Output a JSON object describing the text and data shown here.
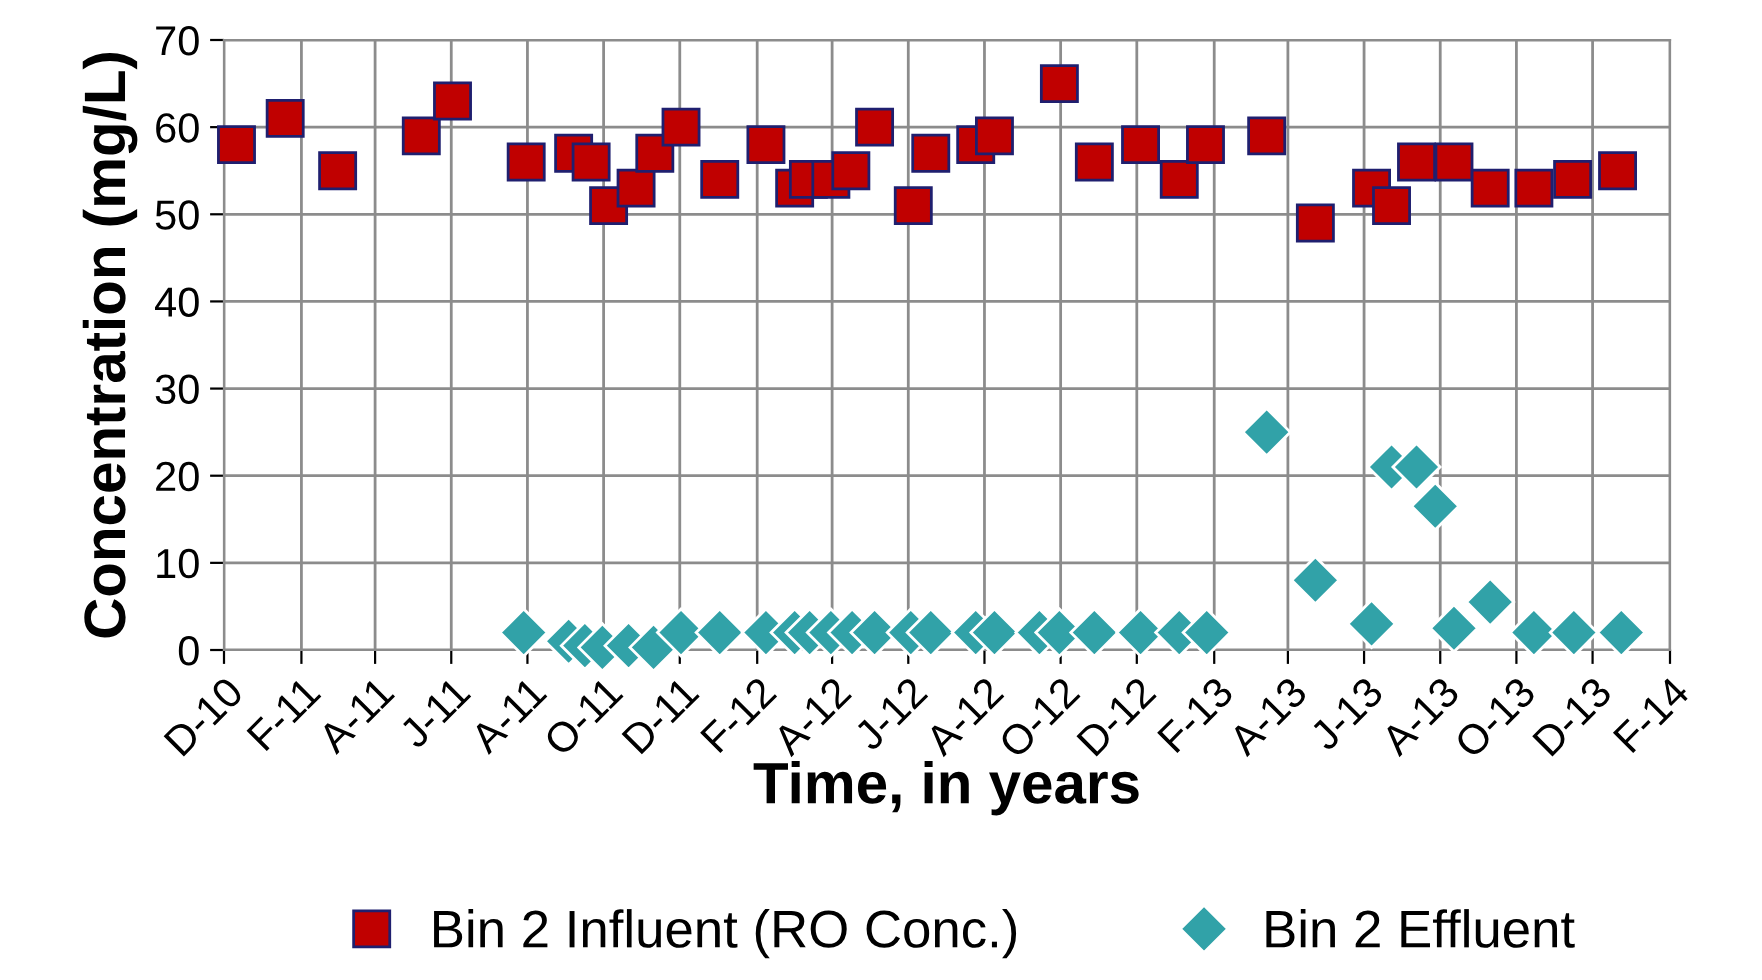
{
  "chart_data": {
    "type": "scatter",
    "xlabel": "Time, in years",
    "ylabel": "Concentration (mg/L)",
    "xlim": [
      "2010-12-01",
      "2014-02-01"
    ],
    "xticks": [
      {
        "value": "2010-12-01",
        "label": "D-10"
      },
      {
        "value": "2011-02-01",
        "label": "F-11"
      },
      {
        "value": "2011-04-01",
        "label": "A-11"
      },
      {
        "value": "2011-06-01",
        "label": "J-11"
      },
      {
        "value": "2011-08-01",
        "label": "A-11"
      },
      {
        "value": "2011-10-01",
        "label": "O-11"
      },
      {
        "value": "2011-12-01",
        "label": "D-11"
      },
      {
        "value": "2012-02-01",
        "label": "F-12"
      },
      {
        "value": "2012-04-01",
        "label": "A-12"
      },
      {
        "value": "2012-06-01",
        "label": "J-12"
      },
      {
        "value": "2012-08-01",
        "label": "A-12"
      },
      {
        "value": "2012-10-01",
        "label": "O-12"
      },
      {
        "value": "2012-12-01",
        "label": "D-12"
      },
      {
        "value": "2013-02-01",
        "label": "F-13"
      },
      {
        "value": "2013-04-01",
        "label": "A-13"
      },
      {
        "value": "2013-06-01",
        "label": "J-13"
      },
      {
        "value": "2013-08-01",
        "label": "A-13"
      },
      {
        "value": "2013-10-01",
        "label": "O-13"
      },
      {
        "value": "2013-12-01",
        "label": "D-13"
      },
      {
        "value": "2014-02-01",
        "label": "F-14"
      }
    ],
    "ylim": [
      0,
      70
    ],
    "yticks": [
      0,
      10,
      20,
      30,
      40,
      50,
      60,
      70
    ],
    "grid": true,
    "legend": "bottom",
    "series": [
      {
        "name": "Bin 2 Influent (RO Conc.)",
        "color": "#c00000",
        "marker": "square",
        "x": [
          "2010-12-11",
          "2011-01-19",
          "2011-03-02",
          "2011-05-08",
          "2011-06-02",
          "2011-07-31",
          "2011-09-07",
          "2011-09-21",
          "2011-10-05",
          "2011-10-27",
          "2011-11-11",
          "2011-12-02",
          "2012-01-02",
          "2012-02-08",
          "2012-03-02",
          "2012-03-13",
          "2012-03-31",
          "2012-04-16",
          "2012-05-05",
          "2012-06-05",
          "2012-06-19",
          "2012-07-25",
          "2012-08-09",
          "2012-09-30",
          "2012-10-28",
          "2012-12-04",
          "2013-01-04",
          "2013-01-25",
          "2013-03-15",
          "2013-04-23",
          "2013-06-07",
          "2013-06-23",
          "2013-07-13",
          "2013-08-12",
          "2013-09-10",
          "2013-10-15",
          "2013-11-15",
          "2013-12-21"
        ],
        "values": [
          58,
          61,
          55,
          59,
          63,
          56,
          57,
          56,
          51,
          53,
          57,
          60,
          54,
          58,
          53,
          54,
          54,
          55,
          60,
          51,
          57,
          58,
          59,
          65,
          56,
          58,
          54,
          58,
          59,
          49,
          53,
          51,
          56,
          56,
          53,
          53,
          54,
          55
        ]
      },
      {
        "name": "Bin 2 Effluent",
        "color": "#31a2a8",
        "marker": "diamond",
        "x": [
          "2011-07-29",
          "2011-09-03",
          "2011-09-16",
          "2011-09-30",
          "2011-10-21",
          "2011-11-10",
          "2011-12-02",
          "2012-01-02",
          "2012-02-08",
          "2012-03-02",
          "2012-03-14",
          "2012-03-31",
          "2012-04-17",
          "2012-05-05",
          "2012-06-03",
          "2012-06-19",
          "2012-07-25",
          "2012-08-09",
          "2012-09-14",
          "2012-09-30",
          "2012-10-28",
          "2012-12-04",
          "2013-01-04",
          "2013-01-26",
          "2013-03-15",
          "2013-04-23",
          "2013-06-07",
          "2013-06-23",
          "2013-07-13",
          "2013-07-28",
          "2013-08-12",
          "2013-09-10",
          "2013-10-15",
          "2013-11-16",
          "2013-12-24"
        ],
        "values": [
          2,
          1,
          0.5,
          0.3,
          0.5,
          0.3,
          2,
          2,
          2,
          2,
          2,
          2,
          2,
          2,
          2,
          2,
          2,
          2,
          2,
          2,
          2,
          2,
          2,
          2,
          25,
          8,
          3,
          21,
          21,
          16.5,
          2.5,
          5.5,
          2,
          2,
          2
        ]
      }
    ]
  }
}
